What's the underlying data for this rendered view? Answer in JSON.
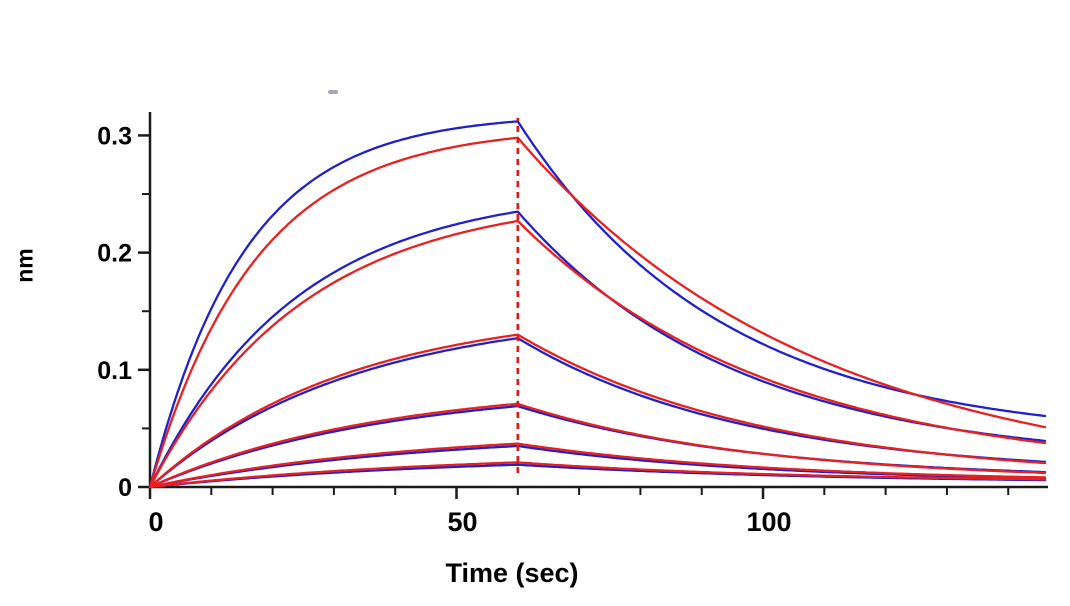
{
  "figure": {
    "background": "#ffffff"
  },
  "chart_data": {
    "type": "line",
    "title": "",
    "subtitle": "",
    "xlabel": "Time (sec)",
    "ylabel": "nm",
    "xlim": [
      0,
      146
    ],
    "ylim": [
      0,
      0.32
    ],
    "x_major_ticks": [
      0,
      50,
      100
    ],
    "x_tick_labels": [
      "0",
      "50",
      "100"
    ],
    "x_minor_ticks": [
      10,
      20,
      30,
      40,
      60,
      70,
      80,
      90,
      110,
      120,
      130,
      140
    ],
    "y_major_ticks": [
      0,
      0.1,
      0.2,
      0.3
    ],
    "y_tick_labels": [
      "0",
      "0.1",
      "0.2",
      "0.3"
    ],
    "y_minor_ticks": [
      0.05,
      0.15,
      0.25
    ],
    "grid": false,
    "legend": "none",
    "association_end_sec": 60,
    "dissociation_marker": {
      "x": 60,
      "y_bottom": 0.012,
      "y_top": 0.315,
      "color": "#e01818",
      "style": "dashed"
    },
    "colors": {
      "data": "#2121cc",
      "fit": "#e82020",
      "axis": "#1a1a1a",
      "tick_text": "#000000"
    },
    "model": "y(t)=peak*(1-exp(-ka*t))/(1-exp(-ka*60)) for t<=60 ; y(t)=end+(peak-end)*exp(-kd*(t-60)) for t>60",
    "series": [
      {
        "name": "trace-1-data",
        "role": "data",
        "color": "#2121cc",
        "peak_nm": 0.312,
        "end_nm": 0.04,
        "ka": 0.065,
        "kd": 0.03
      },
      {
        "name": "trace-1-fit",
        "role": "fit",
        "color": "#e82020",
        "peak_nm": 0.298,
        "end_nm": 0.0,
        "ka": 0.058,
        "kd": 0.0205
      },
      {
        "name": "trace-2-data",
        "role": "data",
        "color": "#2121cc",
        "peak_nm": 0.235,
        "end_nm": 0.02,
        "ka": 0.042,
        "kd": 0.028
      },
      {
        "name": "trace-2-fit",
        "role": "fit",
        "color": "#e82020",
        "peak_nm": 0.227,
        "end_nm": 0.01,
        "ka": 0.04,
        "kd": 0.024
      },
      {
        "name": "trace-3-data",
        "role": "data",
        "color": "#2121cc",
        "peak_nm": 0.127,
        "end_nm": 0.01,
        "ka": 0.03,
        "kd": 0.027
      },
      {
        "name": "trace-3-fit",
        "role": "fit",
        "color": "#e82020",
        "peak_nm": 0.13,
        "end_nm": 0.006,
        "ka": 0.031,
        "kd": 0.025
      },
      {
        "name": "trace-4-data",
        "role": "data",
        "color": "#2121cc",
        "peak_nm": 0.069,
        "end_nm": 0.006,
        "ka": 0.026,
        "kd": 0.026
      },
      {
        "name": "trace-4-fit",
        "role": "fit",
        "color": "#e82020",
        "peak_nm": 0.071,
        "end_nm": 0.005,
        "ka": 0.027,
        "kd": 0.026
      },
      {
        "name": "trace-5-data",
        "role": "data",
        "color": "#2121cc",
        "peak_nm": 0.035,
        "end_nm": 0.004,
        "ka": 0.022,
        "kd": 0.025
      },
      {
        "name": "trace-5-fit",
        "role": "fit",
        "color": "#e82020",
        "peak_nm": 0.037,
        "end_nm": 0.004,
        "ka": 0.023,
        "kd": 0.024
      },
      {
        "name": "trace-6-data",
        "role": "data",
        "color": "#2121cc",
        "peak_nm": 0.019,
        "end_nm": 0.003,
        "ka": 0.02,
        "kd": 0.02
      },
      {
        "name": "trace-6-fit",
        "role": "fit",
        "color": "#e82020",
        "peak_nm": 0.021,
        "end_nm": 0.004,
        "ka": 0.02,
        "kd": 0.022
      }
    ]
  }
}
